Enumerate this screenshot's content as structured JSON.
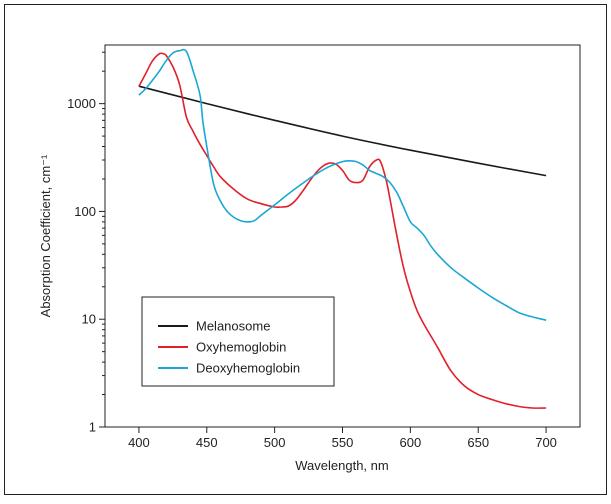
{
  "chart_data": {
    "type": "line",
    "xlabel": "Wavelength, nm",
    "ylabel": "Absorption Coefficient, cm⁻¹",
    "xlim": [
      375,
      725
    ],
    "ylim": [
      1,
      3500
    ],
    "y_scale": "log",
    "x_ticks": [
      400,
      450,
      500,
      550,
      600,
      650,
      700
    ],
    "x_tick_labels": [
      "400",
      "450",
      "500",
      "550",
      "600",
      "650",
      "700"
    ],
    "y_ticks": [
      1,
      10,
      100,
      1000
    ],
    "y_tick_labels": [
      "1",
      "10",
      "100",
      "1000"
    ],
    "grid": false,
    "legend_position": "lower-left",
    "series": [
      {
        "name": "Melanosome",
        "color": "#1a1a1a",
        "x": [
          400,
          420,
          450,
          500,
          550,
          600,
          650,
          700
        ],
        "y": [
          1450,
          1250,
          1000,
          700,
          500,
          370,
          280,
          215
        ]
      },
      {
        "name": "Oxyhemoglobin",
        "color": "#e0202a",
        "x": [
          400,
          405,
          410,
          415,
          418,
          420,
          425,
          430,
          435,
          440,
          445,
          450,
          455,
          460,
          470,
          480,
          490,
          500,
          505,
          510,
          515,
          520,
          525,
          530,
          535,
          540,
          545,
          550,
          555,
          560,
          565,
          570,
          575,
          578,
          582,
          585,
          590,
          595,
          600,
          605,
          610,
          620,
          630,
          640,
          650,
          660,
          670,
          680,
          690,
          700
        ],
        "y": [
          1450,
          1900,
          2500,
          2900,
          2900,
          2800,
          2200,
          1500,
          750,
          550,
          420,
          330,
          260,
          210,
          160,
          130,
          118,
          110,
          110,
          112,
          125,
          150,
          185,
          225,
          260,
          280,
          275,
          240,
          195,
          185,
          195,
          260,
          300,
          290,
          200,
          130,
          60,
          30,
          18,
          12,
          9,
          5.5,
          3.3,
          2.4,
          2.0,
          1.8,
          1.65,
          1.55,
          1.5,
          1.5
        ]
      },
      {
        "name": "Deoxyhemoglobin",
        "color": "#1ba6d6",
        "x": [
          400,
          405,
          410,
          415,
          420,
          425,
          430,
          435,
          440,
          445,
          447,
          450,
          455,
          460,
          465,
          470,
          475,
          480,
          485,
          490,
          500,
          510,
          520,
          530,
          540,
          550,
          555,
          560,
          565,
          570,
          575,
          580,
          585,
          590,
          595,
          600,
          605,
          610,
          615,
          620,
          630,
          640,
          650,
          660,
          670,
          680,
          690,
          700
        ],
        "y": [
          1200,
          1380,
          1650,
          2000,
          2500,
          2950,
          3100,
          3050,
          2000,
          1200,
          700,
          400,
          180,
          125,
          100,
          88,
          82,
          80,
          82,
          92,
          115,
          145,
          180,
          220,
          260,
          290,
          295,
          290,
          270,
          240,
          225,
          210,
          185,
          150,
          110,
          80,
          70,
          60,
          48,
          40,
          30,
          24,
          19.5,
          16,
          13.5,
          11.5,
          10.5,
          9.8
        ]
      }
    ]
  }
}
